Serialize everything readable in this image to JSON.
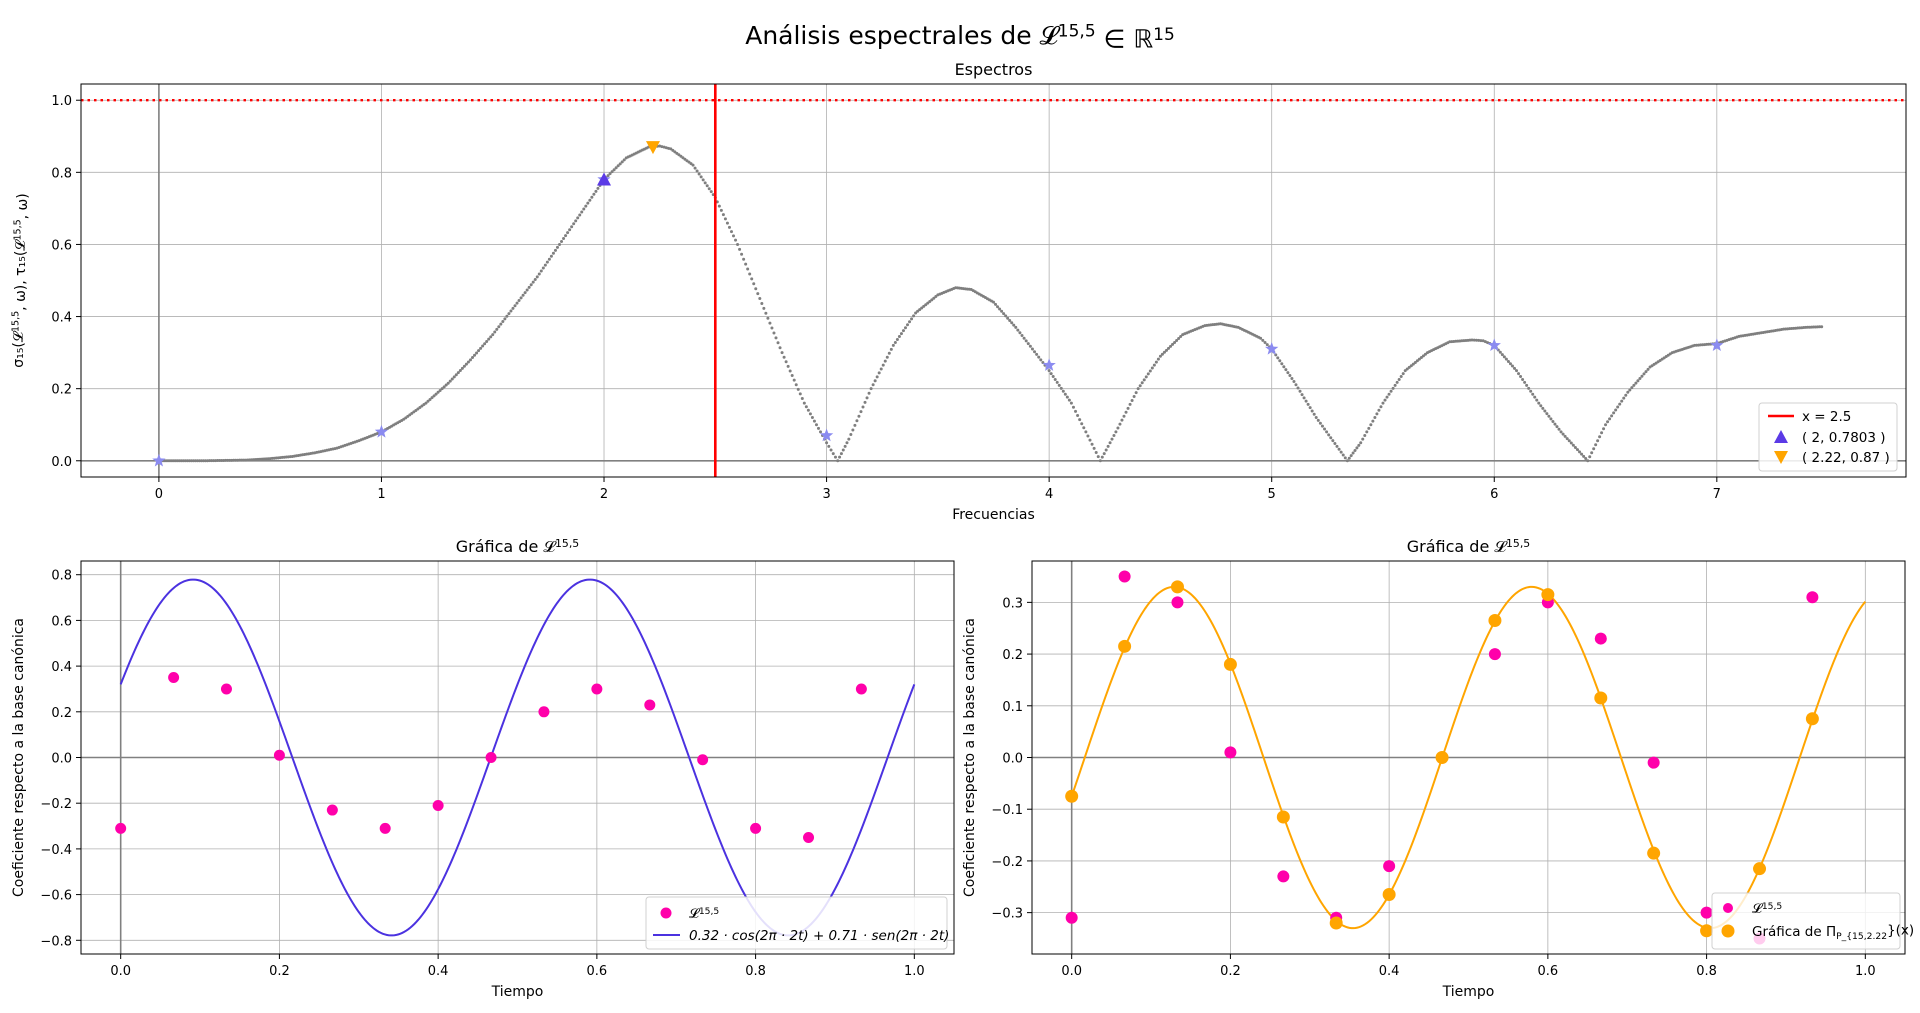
{
  "figure": {
    "suptitle": "Análisis espectrales de 𝓛^{15,5} ∈ ℝ^{15}"
  },
  "chart_data": [
    {
      "id": "spectra",
      "type": "scatter",
      "title": "Espectros",
      "xlabel": "Frecuencias",
      "ylabel": "σ₁₅(𝓛^{15,5}, ω), τ₁₅(𝓛^{15,5}, ω)",
      "xlim": [
        -0.35,
        7.85
      ],
      "ylim": [
        -0.045,
        1.045
      ],
      "xticks": [
        0,
        1,
        2,
        3,
        4,
        5,
        6,
        7
      ],
      "yticks": [
        0.0,
        0.2,
        0.4,
        0.6,
        0.8,
        1.0
      ],
      "tick_labels_x": [
        "0",
        "1",
        "2",
        "3",
        "4",
        "5",
        "6",
        "7"
      ],
      "tick_labels_y": [
        "0.0",
        "0.2",
        "0.4",
        "0.6",
        "0.8",
        "1.0"
      ],
      "grid": true,
      "legend_position": "lower-right",
      "spectrum_curve": {
        "color": "#7f7f7f",
        "x": [
          0,
          0.2,
          0.4,
          0.5,
          0.6,
          0.7,
          0.8,
          0.9,
          1.0,
          1.1,
          1.2,
          1.3,
          1.4,
          1.5,
          1.6,
          1.7,
          1.8,
          1.9,
          2.0,
          2.1,
          2.2,
          2.25,
          2.3,
          2.4,
          2.5,
          2.6,
          2.7,
          2.8,
          2.9,
          3.0,
          3.05,
          3.1,
          3.2,
          3.3,
          3.4,
          3.5,
          3.58,
          3.65,
          3.75,
          3.85,
          4.0,
          4.1,
          4.23,
          4.3,
          4.4,
          4.5,
          4.6,
          4.7,
          4.77,
          4.85,
          4.95,
          5.0,
          5.1,
          5.2,
          5.34,
          5.4,
          5.5,
          5.6,
          5.7,
          5.8,
          5.9,
          5.95,
          6.0,
          6.1,
          6.2,
          6.3,
          6.42,
          6.5,
          6.6,
          6.7,
          6.8,
          6.9,
          7.0,
          7.1,
          7.2,
          7.3,
          7.4,
          7.48
        ],
        "y": [
          0.0,
          0.0,
          0.002,
          0.006,
          0.012,
          0.022,
          0.035,
          0.056,
          0.08,
          0.115,
          0.16,
          0.215,
          0.28,
          0.35,
          0.43,
          0.51,
          0.6,
          0.69,
          0.78,
          0.84,
          0.87,
          0.873,
          0.865,
          0.82,
          0.73,
          0.6,
          0.45,
          0.3,
          0.16,
          0.05,
          0.0,
          0.06,
          0.2,
          0.32,
          0.41,
          0.46,
          0.48,
          0.475,
          0.44,
          0.37,
          0.25,
          0.16,
          0.0,
          0.08,
          0.2,
          0.29,
          0.35,
          0.375,
          0.38,
          0.37,
          0.34,
          0.31,
          0.22,
          0.12,
          0.0,
          0.05,
          0.16,
          0.25,
          0.3,
          0.33,
          0.335,
          0.333,
          0.32,
          0.25,
          0.16,
          0.08,
          0.0,
          0.1,
          0.19,
          0.26,
          0.3,
          0.32,
          0.325,
          0.345,
          0.355,
          0.365,
          0.37,
          0.372
        ]
      },
      "integer_markers": {
        "color": "#8b8bf0",
        "x": [
          0,
          1,
          2,
          3,
          4,
          5,
          6,
          7
        ],
        "y": [
          0.0,
          0.08,
          0.78,
          0.07,
          0.265,
          0.31,
          0.32,
          0.32
        ]
      },
      "hline": {
        "y": 1.0,
        "color": "#ff0000",
        "style": "dotted"
      },
      "vline": {
        "x": 2.5,
        "color": "#ff0000",
        "label": "x = 2.5"
      },
      "point_up": {
        "x": 2,
        "y": 0.7803,
        "color": "#5b3ae6",
        "label": "( 2, 0.7803 )"
      },
      "point_down": {
        "x": 2.22,
        "y": 0.87,
        "color": "#ffa500",
        "label": "( 2.22, 0.87 )"
      }
    },
    {
      "id": "signal_left",
      "type": "line",
      "title": "Gráfica de 𝓛^{15,5}",
      "xlabel": "Tiempo",
      "ylabel": "Coeficiente respecto a la base canónica",
      "xlim": [
        -0.05,
        1.05
      ],
      "ylim": [
        -0.86,
        0.86
      ],
      "xticks": [
        0.0,
        0.2,
        0.4,
        0.6,
        0.8,
        1.0
      ],
      "yticks": [
        -0.8,
        -0.6,
        -0.4,
        -0.2,
        0.0,
        0.2,
        0.4,
        0.6,
        0.8
      ],
      "tick_labels_x": [
        "0.0",
        "0.2",
        "0.4",
        "0.6",
        "0.8",
        "1.0"
      ],
      "tick_labels_y": [
        "−0.8",
        "−0.6",
        "−0.4",
        "−0.2",
        "0.0",
        "0.2",
        "0.4",
        "0.6",
        "0.8"
      ],
      "grid": true,
      "legend_position": "lower-right",
      "points": {
        "label": "𝓛^{15,5}",
        "color": "#ff00aa",
        "x": [
          0.0,
          0.0667,
          0.1333,
          0.2,
          0.2667,
          0.3333,
          0.4,
          0.4667,
          0.5333,
          0.6,
          0.6667,
          0.7333,
          0.8,
          0.8667,
          0.9333
        ],
        "y": [
          -0.31,
          0.35,
          0.3,
          0.01,
          -0.23,
          -0.31,
          -0.21,
          0.0,
          0.2,
          0.3,
          0.23,
          -0.01,
          -0.31,
          -0.35,
          0.3
        ]
      },
      "curve": {
        "label": "0.32 · cos(2π · 2t) + 0.71 · sen(2π · 2t)",
        "color": "#4b32e0",
        "a": 0.32,
        "b": 0.71,
        "freq": 2
      }
    },
    {
      "id": "signal_right",
      "type": "scatter",
      "title": "Gráfica de 𝓛^{15,5}",
      "xlabel": "Tiempo",
      "ylabel": "Coeficiente respecto a la base canónica",
      "xlim": [
        -0.05,
        1.05
      ],
      "ylim": [
        -0.38,
        0.38
      ],
      "xticks": [
        0.0,
        0.2,
        0.4,
        0.6,
        0.8,
        1.0
      ],
      "yticks": [
        -0.3,
        -0.2,
        -0.1,
        0.0,
        0.1,
        0.2,
        0.3
      ],
      "tick_labels_x": [
        "0.0",
        "0.2",
        "0.4",
        "0.6",
        "0.8",
        "1.0"
      ],
      "tick_labels_y": [
        "−0.3",
        "−0.2",
        "−0.1",
        "0.0",
        "0.1",
        "0.2",
        "0.3"
      ],
      "grid": true,
      "legend_position": "lower-right",
      "points": {
        "label": "𝓛^{15,5}",
        "color": "#ff00aa",
        "x": [
          0.0,
          0.0667,
          0.1333,
          0.2,
          0.2667,
          0.3333,
          0.4,
          0.4667,
          0.5333,
          0.6,
          0.6667,
          0.7333,
          0.8,
          0.8667,
          0.9333
        ],
        "y": [
          -0.31,
          0.35,
          0.3,
          0.01,
          -0.23,
          -0.31,
          -0.21,
          0.0,
          0.2,
          0.3,
          0.23,
          -0.01,
          -0.3,
          -0.35,
          0.31
        ]
      },
      "projection": {
        "label": "Gráfica de Π_{P_{15,2.22}}(x)",
        "color": "#ffa500",
        "x": [
          0.0,
          0.0667,
          0.1333,
          0.2,
          0.2667,
          0.3333,
          0.4,
          0.4667,
          0.5333,
          0.6,
          0.6667,
          0.7333,
          0.8,
          0.8667,
          0.9333
        ],
        "y": [
          -0.075,
          0.215,
          0.33,
          0.18,
          -0.115,
          -0.32,
          -0.265,
          0.0,
          0.265,
          0.315,
          0.115,
          -0.185,
          -0.335,
          -0.215,
          0.075
        ],
        "curve_freq": 2.22,
        "curve_amp": 0.33,
        "curve_phase": -0.23
      }
    }
  ]
}
